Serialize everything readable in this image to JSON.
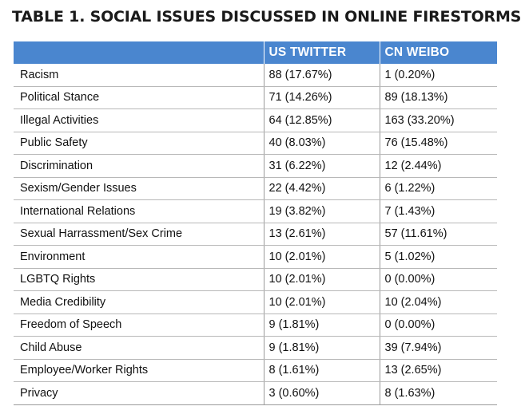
{
  "title": "TABLE 1. SOCIAL ISSUES DISCUSSED IN ONLINE FIRESTORMS",
  "table": {
    "headers": [
      "",
      "US TWITTER",
      "CN WEIBO"
    ],
    "rows": [
      {
        "issue": "Racism",
        "us": "88 (17.67%)",
        "cn": "1 (0.20%)"
      },
      {
        "issue": "Political Stance",
        "us": "71 (14.26%)",
        "cn": "89 (18.13%)"
      },
      {
        "issue": "Illegal Activities",
        "us": "64 (12.85%)",
        "cn": "163 (33.20%)"
      },
      {
        "issue": "Public Safety",
        "us": "40 (8.03%)",
        "cn": "76 (15.48%)"
      },
      {
        "issue": "Discrimination",
        "us": "31 (6.22%)",
        "cn": "12 (2.44%)"
      },
      {
        "issue": "Sexism/Gender Issues",
        "us": "22 (4.42%)",
        "cn": "6 (1.22%)"
      },
      {
        "issue": "International Relations",
        "us": "19 (3.82%)",
        "cn": "7 (1.43%)"
      },
      {
        "issue": "Sexual Harrassment/Sex Crime",
        "us": "13 (2.61%)",
        "cn": "57 (11.61%)"
      },
      {
        "issue": "Environment",
        "us": "10 (2.01%)",
        "cn": "5 (1.02%)"
      },
      {
        "issue": "LGBTQ Rights",
        "us": "10 (2.01%)",
        "cn": "0 (0.00%)"
      },
      {
        "issue": "Media Credibility",
        "us": "10 (2.01%)",
        "cn": "10 (2.04%)"
      },
      {
        "issue": "Freedom of Speech",
        "us": "9 (1.81%)",
        "cn": "0 (0.00%)"
      },
      {
        "issue": "Child Abuse",
        "us": "9 (1.81%)",
        "cn": "39 (7.94%)"
      },
      {
        "issue": "Employee/Worker Rights",
        "us": "8 (1.61%)",
        "cn": "13 (2.65%)"
      },
      {
        "issue": "Privacy",
        "us": "3 (0.60%)",
        "cn": "8 (1.63%)"
      }
    ]
  },
  "colors": {
    "header_bg": "#4a86cf",
    "header_text": "#ffffff",
    "border": "#9a9a9a"
  }
}
